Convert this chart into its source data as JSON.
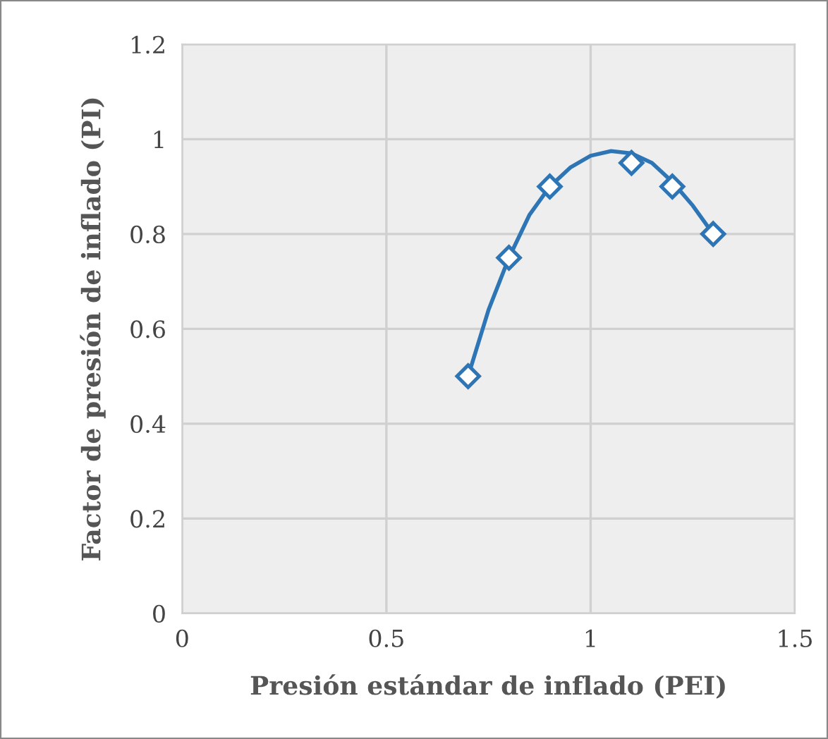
{
  "chart_data": {
    "type": "scatter",
    "xlabel": "Presión estándar de inflado (PEI)",
    "ylabel": "Factor de presión de inflado (PI)",
    "xlim": [
      0,
      1.5
    ],
    "xticks": [
      0,
      0.5,
      1,
      1.5
    ],
    "ylim": [
      0,
      1.2
    ],
    "yticks": [
      0,
      0.2,
      0.4,
      0.6,
      0.8,
      1,
      1.2
    ],
    "grid": true,
    "series": [
      {
        "marker": "diamond",
        "color": "#2e75b6",
        "x": [
          0.7,
          0.8,
          0.9,
          1.1,
          1.2,
          1.3
        ],
        "values": [
          0.5,
          0.75,
          0.9,
          0.95,
          0.9,
          0.8
        ]
      },
      {
        "type": "line",
        "color": "#2e75b6",
        "x": [
          0.7,
          0.75,
          0.8,
          0.85,
          0.9,
          0.95,
          1.0,
          1.05,
          1.1,
          1.15,
          1.2,
          1.25,
          1.3
        ],
        "values": [
          0.5,
          0.64,
          0.75,
          0.84,
          0.9,
          0.94,
          0.965,
          0.975,
          0.97,
          0.95,
          0.91,
          0.86,
          0.8
        ]
      }
    ]
  }
}
